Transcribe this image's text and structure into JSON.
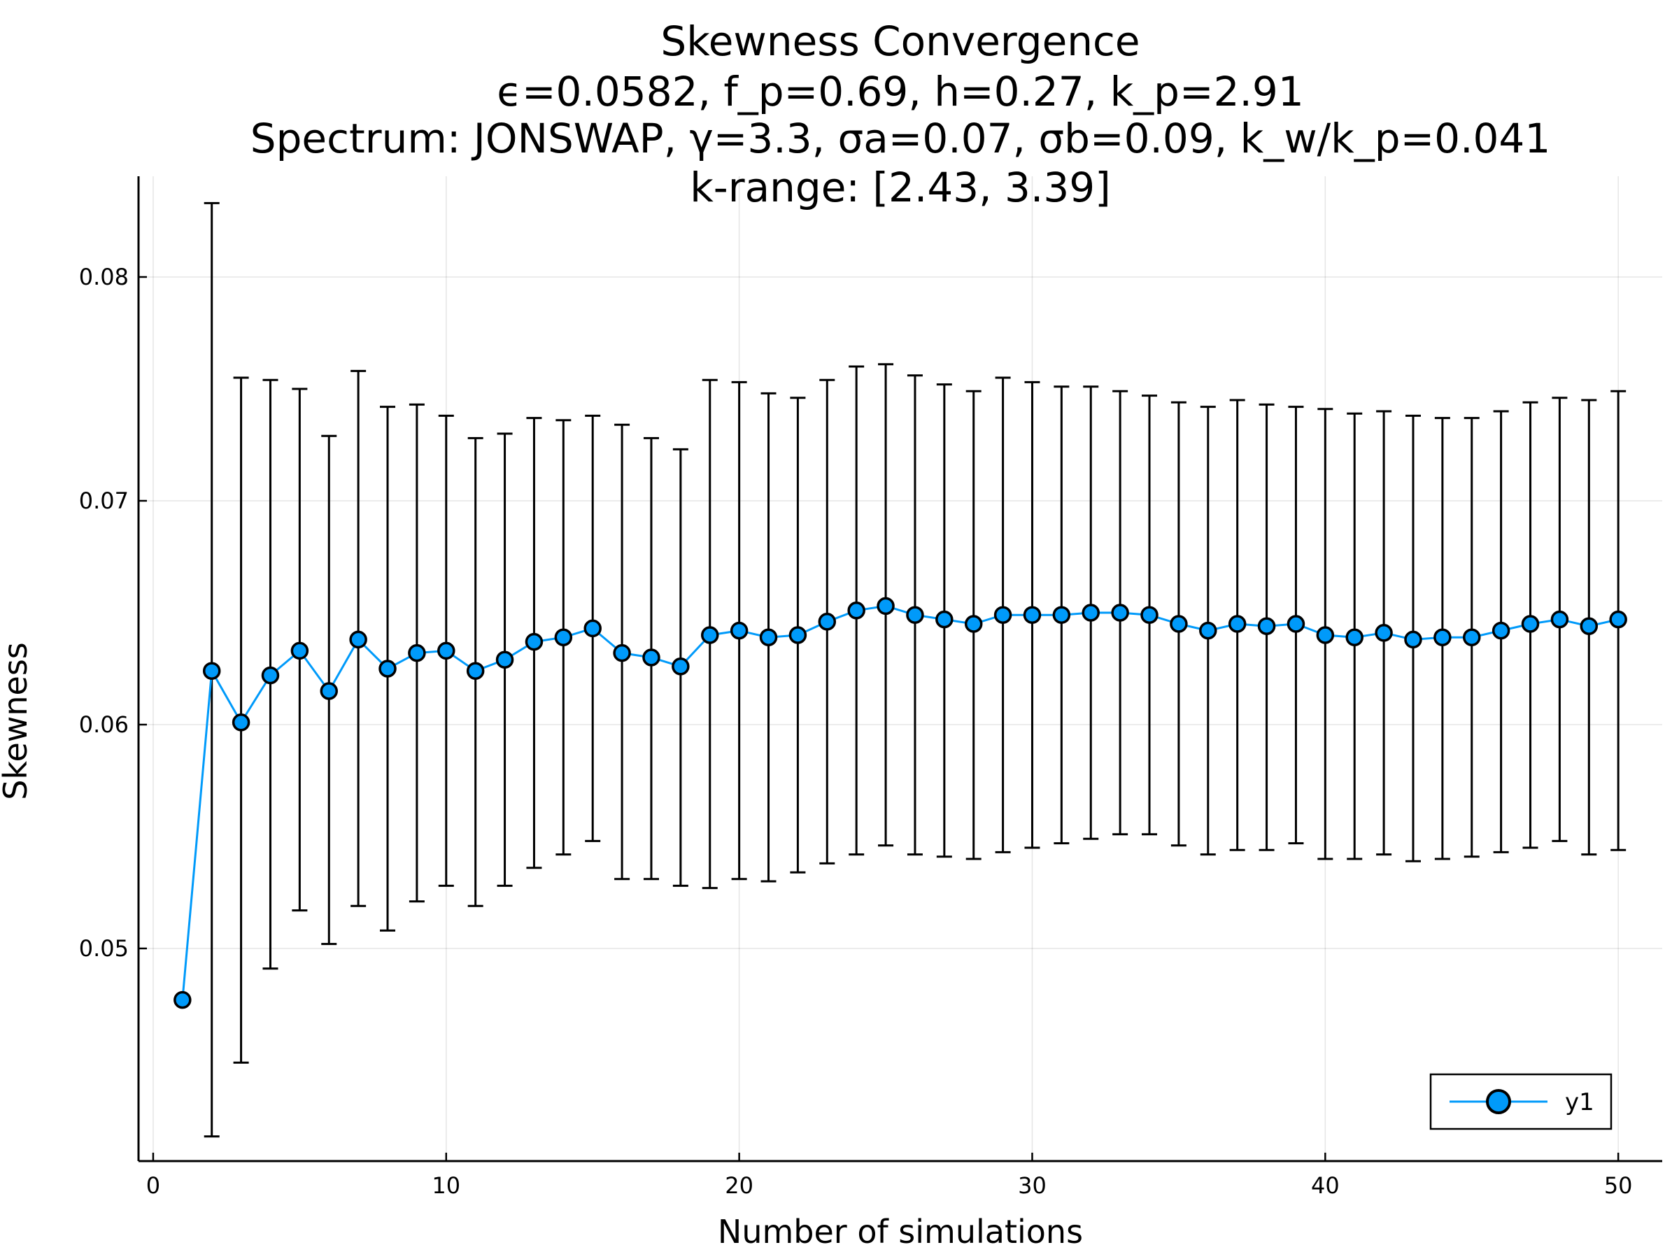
{
  "chart_data": {
    "type": "scatter",
    "title_lines": [
      "Skewness Convergence",
      "ϵ=0.0582, f_p=0.69, h=0.27, k_p=2.91",
      "Spectrum: JONSWAP, γ=3.3, σa=0.07, σb=0.09, k_w/k_p=0.041",
      "k-range: [2.43, 3.39]"
    ],
    "xlabel": "Number of simulations",
    "ylabel": "Skewness",
    "xlim": [
      -0.5,
      51.5
    ],
    "ylim": [
      0.0405,
      0.0845
    ],
    "xticks": [
      0,
      10,
      20,
      30,
      40,
      50
    ],
    "xtick_labels": [
      "0",
      "10",
      "20",
      "30",
      "40",
      "50"
    ],
    "yticks": [
      0.05,
      0.06,
      0.07,
      0.08
    ],
    "ytick_labels": [
      "0.05",
      "0.06",
      "0.07",
      "0.08"
    ],
    "grid": true,
    "legend_position": "bottom-right",
    "series": [
      {
        "name": "y1",
        "color": "#009AFA",
        "x": [
          1,
          2,
          3,
          4,
          5,
          6,
          7,
          8,
          9,
          10,
          11,
          12,
          13,
          14,
          15,
          16,
          17,
          18,
          19,
          20,
          21,
          22,
          23,
          24,
          25,
          26,
          27,
          28,
          29,
          30,
          31,
          32,
          33,
          34,
          35,
          36,
          37,
          38,
          39,
          40,
          41,
          42,
          43,
          44,
          45,
          46,
          47,
          48,
          49,
          50
        ],
        "y": [
          0.0477,
          0.0624,
          0.0601,
          0.0622,
          0.0633,
          0.0615,
          0.0638,
          0.0625,
          0.0632,
          0.0633,
          0.0624,
          0.0629,
          0.0637,
          0.0639,
          0.0643,
          0.0632,
          0.063,
          0.0626,
          0.064,
          0.0642,
          0.0639,
          0.064,
          0.0646,
          0.0651,
          0.0653,
          0.0649,
          0.0647,
          0.0645,
          0.0649,
          0.0649,
          0.0649,
          0.065,
          0.065,
          0.0649,
          0.0645,
          0.0642,
          0.0645,
          0.0644,
          0.0645,
          0.064,
          0.0639,
          0.0641,
          0.0638,
          0.0639,
          0.0639,
          0.0642,
          0.0645,
          0.0647,
          0.0644,
          0.0647
        ],
        "err_low": [
          null,
          0.0416,
          0.0449,
          0.0491,
          0.0517,
          0.0502,
          0.0519,
          0.0508,
          0.0521,
          0.0528,
          0.0519,
          0.0528,
          0.0536,
          0.0542,
          0.0548,
          0.0531,
          0.0531,
          0.0528,
          0.0527,
          0.0531,
          0.053,
          0.0534,
          0.0538,
          0.0542,
          0.0546,
          0.0542,
          0.0541,
          0.054,
          0.0543,
          0.0545,
          0.0547,
          0.0549,
          0.0551,
          0.0551,
          0.0546,
          0.0542,
          0.0544,
          0.0544,
          0.0547,
          0.054,
          0.054,
          0.0542,
          0.0539,
          0.054,
          0.0541,
          0.0543,
          0.0545,
          0.0548,
          0.0542,
          0.0544
        ],
        "err_high": [
          null,
          0.0833,
          0.0755,
          0.0754,
          0.075,
          0.0729,
          0.0758,
          0.0742,
          0.0743,
          0.0738,
          0.0728,
          0.073,
          0.0737,
          0.0736,
          0.0738,
          0.0734,
          0.0728,
          0.0723,
          0.0754,
          0.0753,
          0.0748,
          0.0746,
          0.0754,
          0.076,
          0.0761,
          0.0756,
          0.0752,
          0.0749,
          0.0755,
          0.0753,
          0.0751,
          0.0751,
          0.0749,
          0.0747,
          0.0744,
          0.0742,
          0.0745,
          0.0743,
          0.0742,
          0.0741,
          0.0739,
          0.074,
          0.0738,
          0.0737,
          0.0737,
          0.074,
          0.0744,
          0.0746,
          0.0745,
          0.0749
        ]
      }
    ]
  }
}
